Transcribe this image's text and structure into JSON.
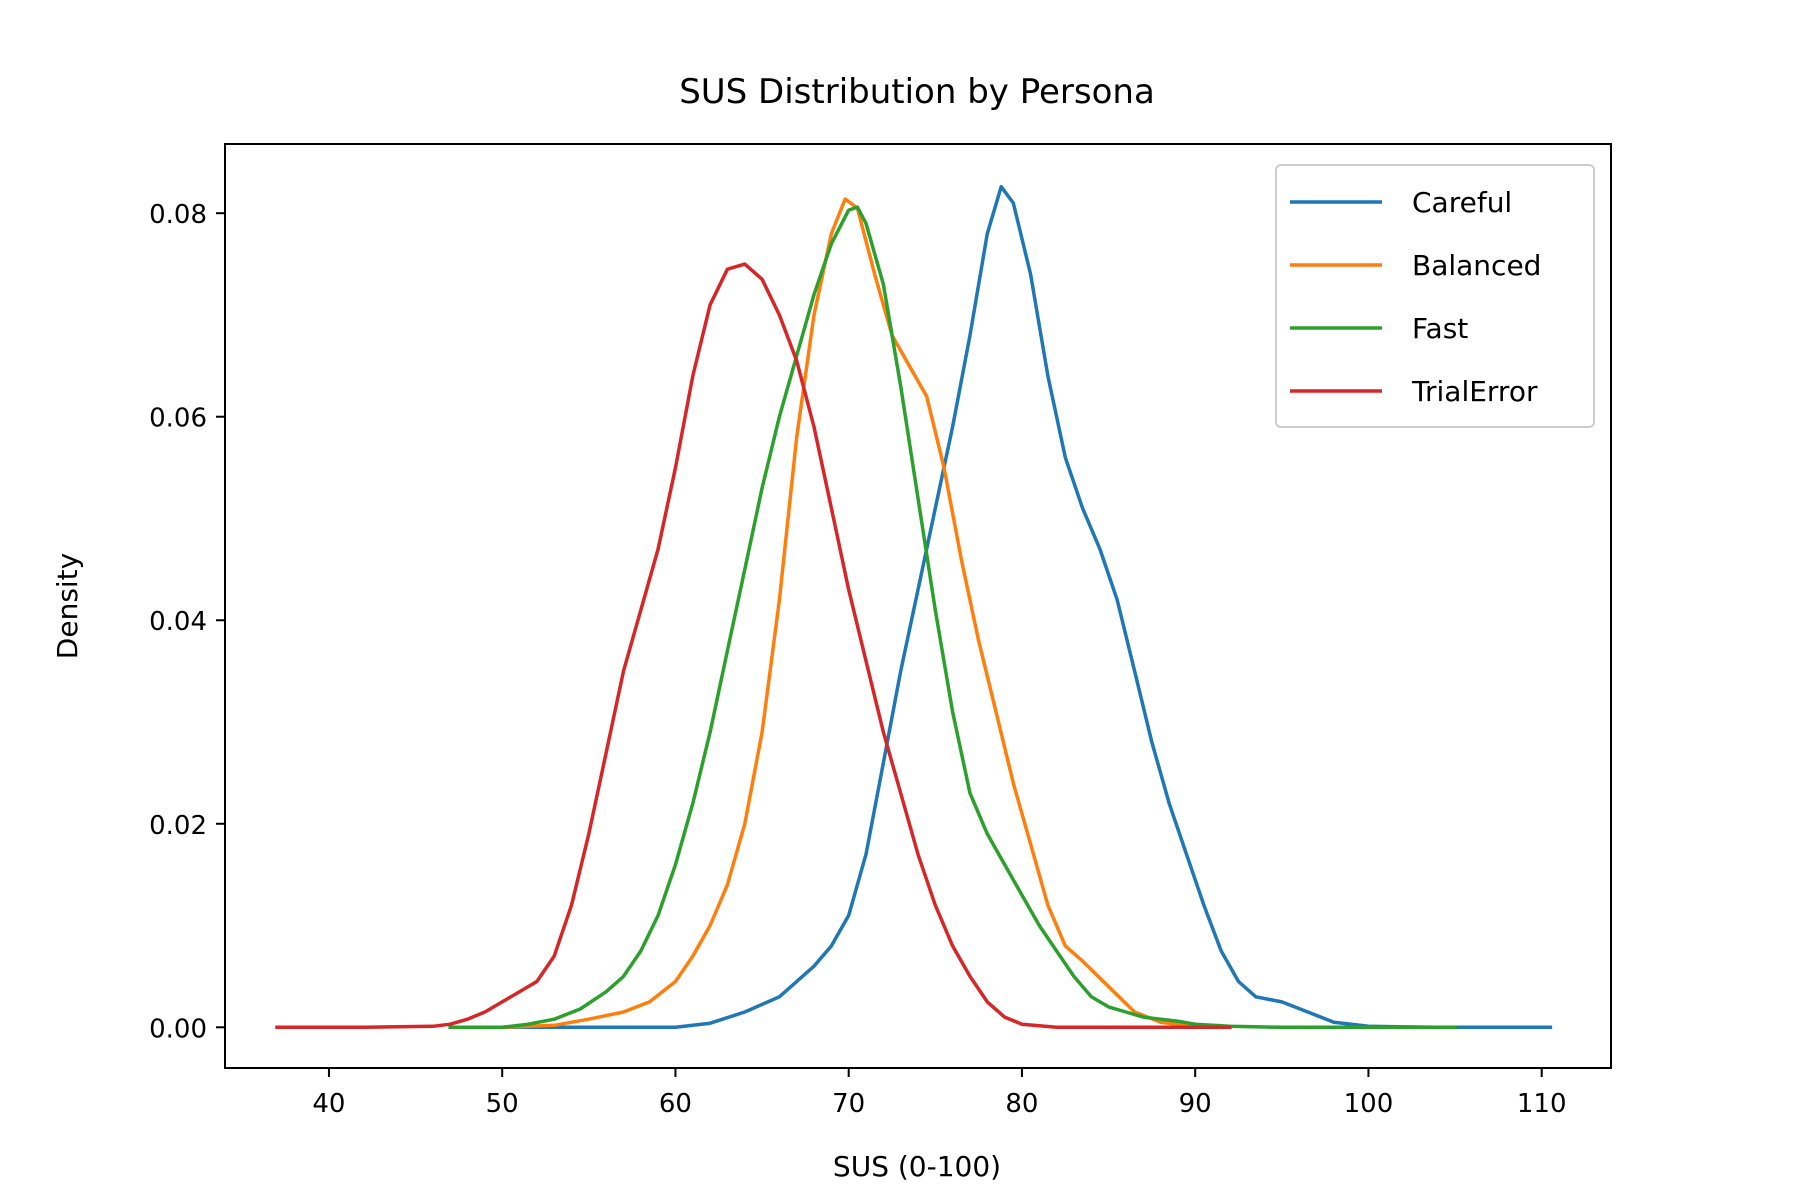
{
  "chart_data": {
    "type": "line",
    "title": "SUS Distribution by Persona",
    "xlabel": "SUS (0-100)",
    "ylabel": "Density",
    "xlim": [
      34,
      114
    ],
    "ylim": [
      -0.004,
      0.0868
    ],
    "xticks": [
      40,
      50,
      60,
      70,
      80,
      90,
      100,
      110
    ],
    "xtick_labels": [
      "40",
      "50",
      "60",
      "70",
      "80",
      "90",
      "100",
      "110"
    ],
    "yticks": [
      0.0,
      0.02,
      0.04,
      0.06,
      0.08
    ],
    "ytick_labels": [
      "0.00",
      "0.02",
      "0.04",
      "0.06",
      "0.08"
    ],
    "grid": false,
    "legend_position": "top-right",
    "series": [
      {
        "name": "Careful",
        "color": "#1f77b4",
        "points": [
          [
            50,
            0.0
          ],
          [
            56,
            0.0
          ],
          [
            60,
            0.0
          ],
          [
            62,
            0.0004
          ],
          [
            64,
            0.0015
          ],
          [
            66,
            0.003
          ],
          [
            68,
            0.006
          ],
          [
            69,
            0.008
          ],
          [
            70,
            0.011
          ],
          [
            71,
            0.017
          ],
          [
            72,
            0.026
          ],
          [
            73,
            0.035
          ],
          [
            74,
            0.043
          ],
          [
            75,
            0.051
          ],
          [
            76,
            0.059
          ],
          [
            77,
            0.068
          ],
          [
            78,
            0.078
          ],
          [
            78.8,
            0.0826
          ],
          [
            79.5,
            0.081
          ],
          [
            80.5,
            0.074
          ],
          [
            81.5,
            0.064
          ],
          [
            82.5,
            0.056
          ],
          [
            83.5,
            0.051
          ],
          [
            84.5,
            0.047
          ],
          [
            85.5,
            0.042
          ],
          [
            86.5,
            0.035
          ],
          [
            87.5,
            0.028
          ],
          [
            88.5,
            0.022
          ],
          [
            89.5,
            0.017
          ],
          [
            90.5,
            0.012
          ],
          [
            91.5,
            0.0075
          ],
          [
            92.5,
            0.0045
          ],
          [
            93.5,
            0.003
          ],
          [
            95,
            0.0025
          ],
          [
            96.5,
            0.0015
          ],
          [
            98,
            0.0005
          ],
          [
            100,
            0.0001
          ],
          [
            104,
            0.0
          ],
          [
            110.5,
            0.0
          ]
        ]
      },
      {
        "name": "Balanced",
        "color": "#ff7f0e",
        "points": [
          [
            50,
            0.0
          ],
          [
            53,
            0.0002
          ],
          [
            55,
            0.0008
          ],
          [
            57,
            0.0015
          ],
          [
            58.5,
            0.0025
          ],
          [
            60,
            0.0045
          ],
          [
            61,
            0.007
          ],
          [
            62,
            0.01
          ],
          [
            63,
            0.014
          ],
          [
            64,
            0.02
          ],
          [
            65,
            0.029
          ],
          [
            66,
            0.042
          ],
          [
            67,
            0.058
          ],
          [
            68,
            0.07
          ],
          [
            69,
            0.078
          ],
          [
            69.8,
            0.0814
          ],
          [
            70.5,
            0.0805
          ],
          [
            71.5,
            0.074
          ],
          [
            72.5,
            0.068
          ],
          [
            73.5,
            0.065
          ],
          [
            74.5,
            0.062
          ],
          [
            75.5,
            0.055
          ],
          [
            76.5,
            0.046
          ],
          [
            77.5,
            0.038
          ],
          [
            78.5,
            0.031
          ],
          [
            79.5,
            0.024
          ],
          [
            80.5,
            0.018
          ],
          [
            81.5,
            0.012
          ],
          [
            82.5,
            0.008
          ],
          [
            83.5,
            0.0065
          ],
          [
            85,
            0.004
          ],
          [
            86.5,
            0.0015
          ],
          [
            88,
            0.0005
          ],
          [
            90,
            0.0001
          ],
          [
            92,
            0.0
          ]
        ]
      },
      {
        "name": "Fast",
        "color": "#2ca02c",
        "points": [
          [
            47,
            0.0
          ],
          [
            50,
            0.0
          ],
          [
            51.5,
            0.0003
          ],
          [
            53,
            0.0008
          ],
          [
            54.5,
            0.0018
          ],
          [
            56,
            0.0035
          ],
          [
            57,
            0.005
          ],
          [
            58,
            0.0075
          ],
          [
            59,
            0.011
          ],
          [
            60,
            0.016
          ],
          [
            61,
            0.022
          ],
          [
            62,
            0.029
          ],
          [
            63,
            0.037
          ],
          [
            64,
            0.045
          ],
          [
            65,
            0.053
          ],
          [
            66,
            0.06
          ],
          [
            67,
            0.066
          ],
          [
            68,
            0.072
          ],
          [
            69,
            0.077
          ],
          [
            70,
            0.0803
          ],
          [
            70.5,
            0.0806
          ],
          [
            71,
            0.079
          ],
          [
            72,
            0.073
          ],
          [
            73,
            0.063
          ],
          [
            74,
            0.052
          ],
          [
            75,
            0.041
          ],
          [
            76,
            0.031
          ],
          [
            77,
            0.023
          ],
          [
            78,
            0.019
          ],
          [
            79,
            0.016
          ],
          [
            80,
            0.013
          ],
          [
            81,
            0.01
          ],
          [
            82,
            0.0075
          ],
          [
            83,
            0.005
          ],
          [
            84,
            0.003
          ],
          [
            85,
            0.002
          ],
          [
            86,
            0.0015
          ],
          [
            87,
            0.001
          ],
          [
            88,
            0.0008
          ],
          [
            89,
            0.0006
          ],
          [
            90,
            0.0003
          ],
          [
            92,
            0.0001
          ],
          [
            95,
            0.0
          ],
          [
            105,
            0.0
          ]
        ]
      },
      {
        "name": "TrialError",
        "color": "#d62728",
        "points": [
          [
            37,
            0.0
          ],
          [
            42,
            0.0
          ],
          [
            46,
            0.0001
          ],
          [
            47,
            0.0003
          ],
          [
            48,
            0.0008
          ],
          [
            49,
            0.0015
          ],
          [
            50,
            0.0025
          ],
          [
            51,
            0.0035
          ],
          [
            52,
            0.0045
          ],
          [
            53,
            0.007
          ],
          [
            54,
            0.012
          ],
          [
            55,
            0.019
          ],
          [
            56,
            0.027
          ],
          [
            57,
            0.035
          ],
          [
            58,
            0.041
          ],
          [
            59,
            0.047
          ],
          [
            60,
            0.055
          ],
          [
            61,
            0.064
          ],
          [
            62,
            0.071
          ],
          [
            63,
            0.0745
          ],
          [
            64,
            0.075
          ],
          [
            65,
            0.0735
          ],
          [
            66,
            0.07
          ],
          [
            67,
            0.0655
          ],
          [
            68,
            0.059
          ],
          [
            69,
            0.051
          ],
          [
            70,
            0.043
          ],
          [
            71,
            0.036
          ],
          [
            72,
            0.029
          ],
          [
            73,
            0.023
          ],
          [
            74,
            0.017
          ],
          [
            75,
            0.012
          ],
          [
            76,
            0.008
          ],
          [
            77,
            0.005
          ],
          [
            78,
            0.0025
          ],
          [
            79,
            0.001
          ],
          [
            80,
            0.0003
          ],
          [
            82,
            0.0
          ],
          [
            86,
            0.0
          ],
          [
            92,
            0.0
          ]
        ]
      }
    ]
  }
}
